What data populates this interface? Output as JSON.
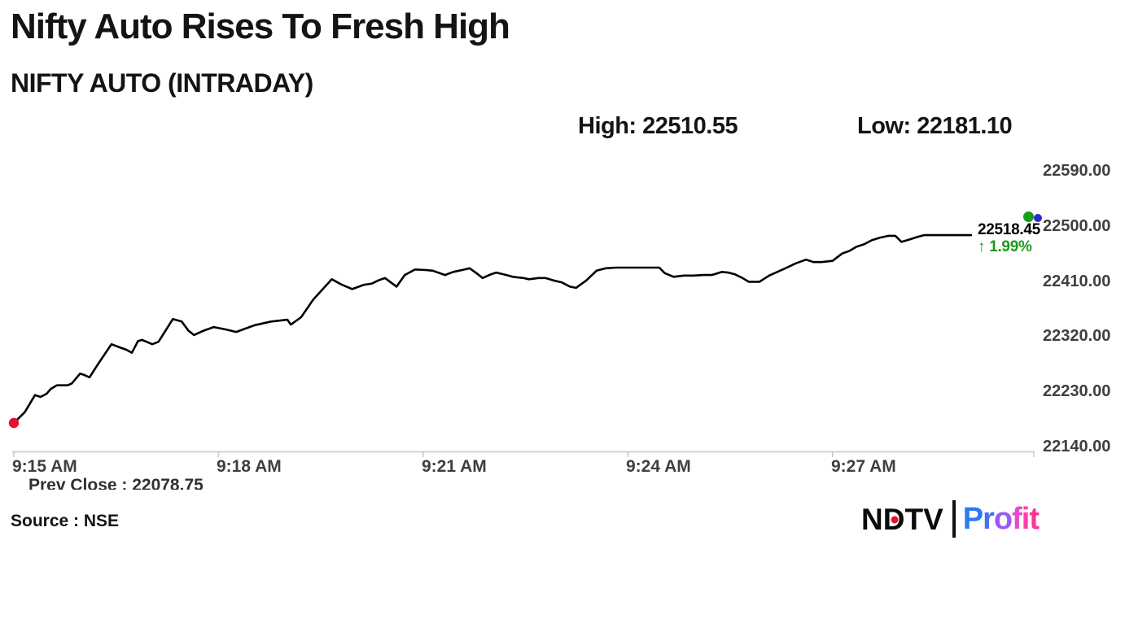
{
  "header": {
    "title": "Nifty Auto Rises To Fresh High",
    "subtitle": "NIFTY AUTO (INTRADAY)"
  },
  "stats": {
    "high_label": "High:",
    "high_value": "22510.55",
    "low_label": "Low:",
    "low_value": "22181.10"
  },
  "annotations": {
    "last_price": "22518.45",
    "change_arrow": "↑",
    "change_pct": "1.99%",
    "prev_close": "Prev Close : 22078.75"
  },
  "footer": {
    "source": "Source : NSE"
  },
  "logo": {
    "ndtv_n": "N",
    "ndtv_d": "D",
    "ndtv_tv": "TV",
    "profit_letters": [
      "P",
      "r",
      "o",
      "f",
      "i",
      "t"
    ]
  },
  "colors": {
    "line": "#000000",
    "up_green": "#1a9b1a",
    "start_dot_red": "#e8112d",
    "marker_blue": "#2929cc",
    "axis_gray": "#c8c8c8",
    "label_gray": "#3f3f3f"
  },
  "chart_data": {
    "type": "line",
    "title": "NIFTY AUTO (INTRADAY)",
    "high": 22510.55,
    "low": 22181.1,
    "last": 22518.45,
    "change_pct": 1.99,
    "prev_close": 22078.75,
    "legend": "none",
    "grid": false,
    "x_axis": {
      "unit": "minutes after 9:15 AM",
      "tick_labels": [
        "9:15 AM",
        "9:18 AM",
        "9:21 AM",
        "9:24 AM",
        "9:27 AM"
      ],
      "tick_minutes": [
        0,
        3,
        6,
        9,
        12
      ],
      "range_minutes": [
        0,
        14.95
      ]
    },
    "y_axis": {
      "position": "right",
      "tick_labels": [
        "22590.00",
        "22500.00",
        "22410.00",
        "22320.00",
        "22230.00",
        "22140.00"
      ],
      "range": [
        22140,
        22590
      ]
    },
    "series": [
      {
        "name": "NIFTY AUTO",
        "color": "#000000",
        "points": [
          [
            0,
            22178.5
          ],
          [
            0.16,
            22196
          ],
          [
            0.31,
            22224
          ],
          [
            0.39,
            22221
          ],
          [
            0.48,
            22226
          ],
          [
            0.54,
            22234
          ],
          [
            0.63,
            22240
          ],
          [
            0.79,
            22240
          ],
          [
            0.85,
            22243
          ],
          [
            0.97,
            22259
          ],
          [
            1.03,
            22257
          ],
          [
            1.11,
            22253
          ],
          [
            1.23,
            22274
          ],
          [
            1.43,
            22307
          ],
          [
            1.55,
            22302
          ],
          [
            1.65,
            22298
          ],
          [
            1.73,
            22293
          ],
          [
            1.82,
            22312
          ],
          [
            1.88,
            22314
          ],
          [
            2.03,
            22307
          ],
          [
            2.12,
            22311
          ],
          [
            2.33,
            22348
          ],
          [
            2.46,
            22344
          ],
          [
            2.56,
            22329
          ],
          [
            2.64,
            22322
          ],
          [
            2.78,
            22329
          ],
          [
            2.93,
            22335
          ],
          [
            3.11,
            22331
          ],
          [
            3.26,
            22327
          ],
          [
            3.38,
            22332
          ],
          [
            3.53,
            22338
          ],
          [
            3.77,
            22344
          ],
          [
            4.01,
            22347
          ],
          [
            4.06,
            22339
          ],
          [
            4.21,
            22351
          ],
          [
            4.39,
            22380
          ],
          [
            4.66,
            22413
          ],
          [
            4.81,
            22404
          ],
          [
            4.96,
            22397
          ],
          [
            5.13,
            22404
          ],
          [
            5.25,
            22406
          ],
          [
            5.34,
            22411
          ],
          [
            5.44,
            22415
          ],
          [
            5.61,
            22401
          ],
          [
            5.73,
            22420
          ],
          [
            5.88,
            22429
          ],
          [
            6.04,
            22428
          ],
          [
            6.14,
            22427
          ],
          [
            6.32,
            22420
          ],
          [
            6.44,
            22425
          ],
          [
            6.57,
            22428
          ],
          [
            6.68,
            22431
          ],
          [
            6.78,
            22423
          ],
          [
            6.87,
            22415
          ],
          [
            6.99,
            22421
          ],
          [
            7.07,
            22424
          ],
          [
            7.22,
            22420
          ],
          [
            7.31,
            22417
          ],
          [
            7.47,
            22415
          ],
          [
            7.55,
            22413
          ],
          [
            7.69,
            22415
          ],
          [
            7.79,
            22415
          ],
          [
            7.91,
            22411
          ],
          [
            8.03,
            22408
          ],
          [
            8.15,
            22401
          ],
          [
            8.24,
            22399
          ],
          [
            8.39,
            22411
          ],
          [
            8.54,
            22427
          ],
          [
            8.68,
            22431
          ],
          [
            8.83,
            22432
          ],
          [
            9.1,
            22432
          ],
          [
            9.34,
            22432
          ],
          [
            9.46,
            22432
          ],
          [
            9.54,
            22423
          ],
          [
            9.67,
            22417
          ],
          [
            9.82,
            22419
          ],
          [
            9.96,
            22419
          ],
          [
            10.11,
            22420
          ],
          [
            10.23,
            22420
          ],
          [
            10.38,
            22425
          ],
          [
            10.47,
            22424
          ],
          [
            10.57,
            22421
          ],
          [
            10.68,
            22415
          ],
          [
            10.77,
            22409
          ],
          [
            10.93,
            22409
          ],
          [
            11.07,
            22419
          ],
          [
            11.19,
            22425
          ],
          [
            11.33,
            22432
          ],
          [
            11.46,
            22439
          ],
          [
            11.61,
            22445
          ],
          [
            11.72,
            22441
          ],
          [
            11.84,
            22441
          ],
          [
            12,
            22443
          ],
          [
            12.14,
            22455
          ],
          [
            12.24,
            22459
          ],
          [
            12.35,
            22466
          ],
          [
            12.46,
            22470
          ],
          [
            12.58,
            22477
          ],
          [
            12.7,
            22481
          ],
          [
            12.82,
            22484
          ],
          [
            12.92,
            22484
          ],
          [
            13.01,
            22474
          ],
          [
            13.13,
            22478
          ],
          [
            13.24,
            22482
          ],
          [
            13.34,
            22485
          ],
          [
            13.45,
            22485
          ],
          [
            13.57,
            22485
          ],
          [
            13.75,
            22485
          ],
          [
            13.9,
            22485
          ],
          [
            14.03,
            22485
          ]
        ]
      }
    ]
  }
}
